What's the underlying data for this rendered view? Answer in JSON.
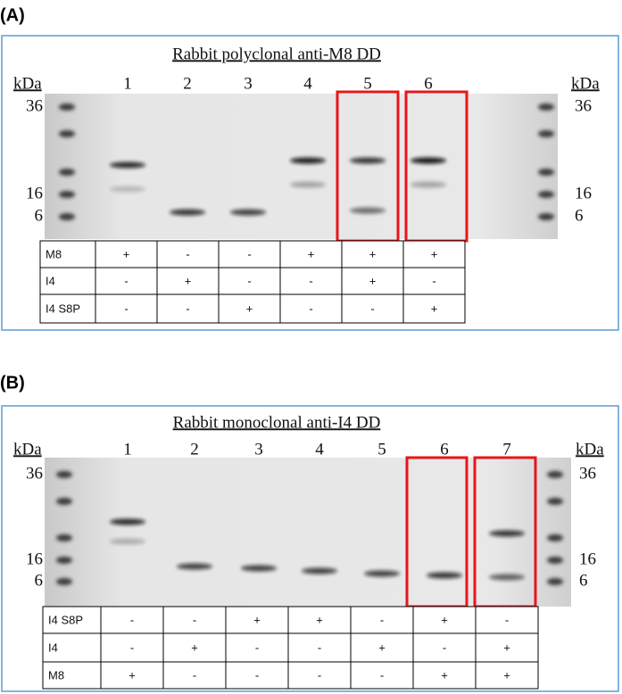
{
  "panels": [
    {
      "label": "(A)",
      "title": "Rabbit polyclonal anti-M8 DD",
      "kda_label": "kDa",
      "kda_markers": [
        "36",
        "16",
        "6"
      ],
      "lanes": [
        "1",
        "2",
        "3",
        "4",
        "5",
        "6"
      ],
      "table": {
        "rows": [
          [
            "M8",
            "+",
            "-",
            "-",
            "+",
            "+",
            "+"
          ],
          [
            "I4",
            "-",
            "+",
            "-",
            "-",
            "+",
            "-"
          ],
          [
            "I4 S8P",
            "-",
            "-",
            "+",
            "-",
            "-",
            "+"
          ]
        ]
      }
    },
    {
      "label": "(B)",
      "title": "Rabbit monoclonal anti-I4 DD",
      "kda_label": "kDa",
      "kda_markers": [
        "36",
        "16",
        "6"
      ],
      "lanes": [
        "1",
        "2",
        "3",
        "4",
        "5",
        "6",
        "7"
      ],
      "table": {
        "rows": [
          [
            "I4 S8P",
            "-",
            "-",
            "+",
            "+",
            "-",
            "+",
            "-"
          ],
          [
            "I4",
            "-",
            "+",
            "-",
            "-",
            "+",
            "-",
            "+"
          ],
          [
            "M8",
            "+",
            "-",
            "-",
            "-",
            "-",
            "+",
            "+"
          ]
        ]
      }
    }
  ]
}
